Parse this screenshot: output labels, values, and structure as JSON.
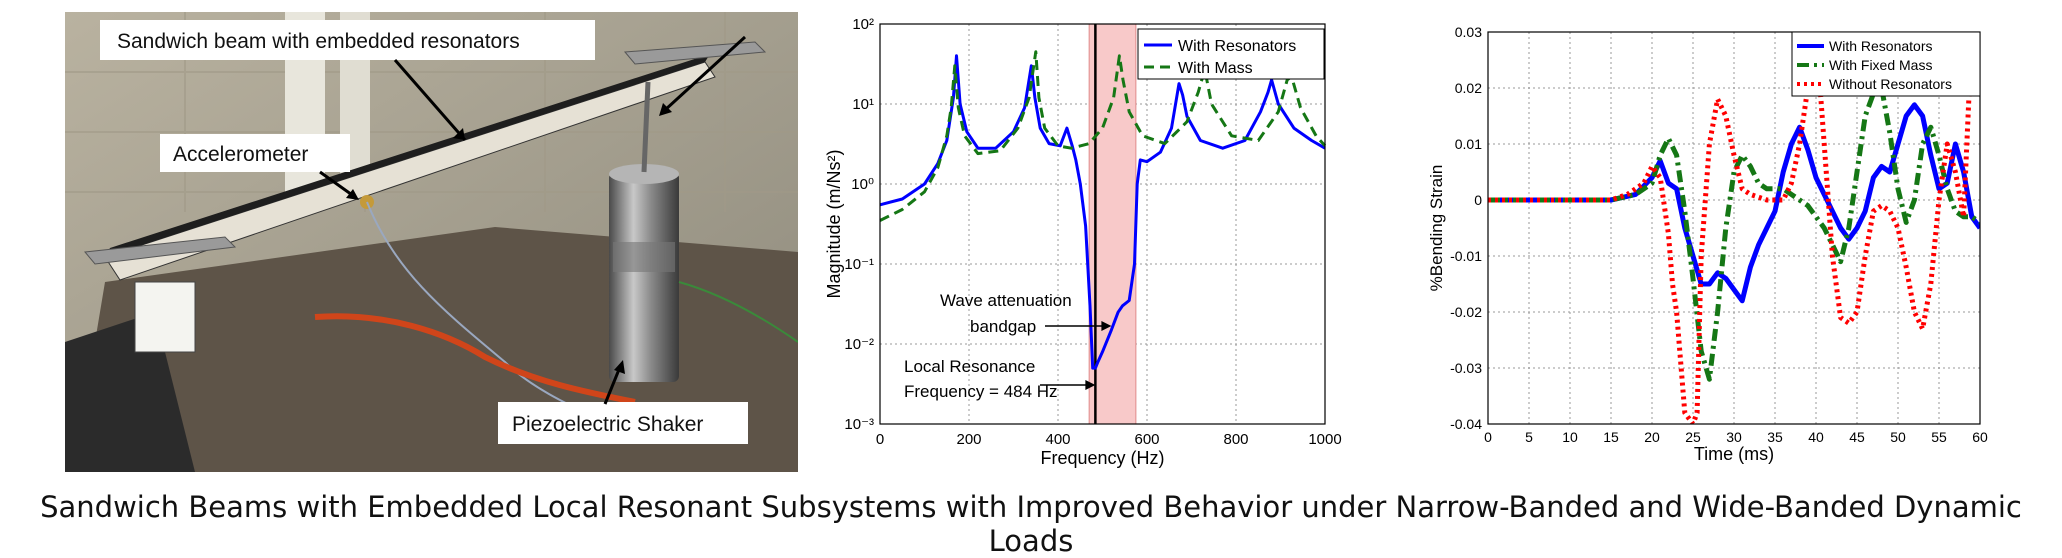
{
  "photo": {
    "labels": {
      "beam": "Sandwich beam with embedded resonators",
      "accelerometer": "Accelerometer",
      "shaker": "Piezoelectric Shaker"
    }
  },
  "caption": "Sandwich Beams with Embedded Local Resonant Subsystems with Improved Behavior under Narrow-Banded and Wide-Banded Dynamic Loads",
  "chart_data": [
    {
      "type": "line",
      "title": "",
      "xlabel": "Frequency (Hz)",
      "ylabel": "Magnitude (m/Ns²)",
      "xlim": [
        0,
        1000
      ],
      "ylim": [
        0.001,
        100
      ],
      "yscale": "log",
      "xticks": [
        "0",
        "200",
        "400",
        "600",
        "800",
        "1000"
      ],
      "yticks": [
        "10⁻³",
        "10⁻²",
        "10⁻¹",
        "10⁰",
        "10¹",
        "10²"
      ],
      "grid": true,
      "legend_position": "top-right",
      "bandgap": [
        470,
        575
      ],
      "resonance_line": 484,
      "annotations": {
        "bandgap_line1": "Wave attenuation",
        "bandgap_line2": "bandgap",
        "resonance_line1": "Local Resonance",
        "resonance_line2": "Frequency = 484 Hz"
      },
      "series": [
        {
          "name": "With Resonators",
          "color": "#0000ff",
          "style": "solid",
          "x": [
            0,
            50,
            100,
            130,
            150,
            165,
            172,
            180,
            195,
            220,
            260,
            300,
            325,
            340,
            348,
            360,
            380,
            405,
            420,
            432,
            440,
            450,
            462,
            472,
            478,
            484,
            490,
            500,
            520,
            535,
            545,
            560,
            572,
            578,
            585,
            600,
            630,
            655,
            672,
            680,
            690,
            720,
            770,
            820,
            855,
            872,
            880,
            895,
            930,
            970,
            1000
          ],
          "y": [
            0.55,
            0.65,
            1.0,
            1.8,
            3.5,
            12,
            40,
            10,
            4.5,
            2.8,
            2.8,
            4.5,
            9,
            30,
            12,
            5,
            3.2,
            3.0,
            5,
            3,
            2,
            1.0,
            0.3,
            0.03,
            0.005,
            0.005,
            0.006,
            0.008,
            0.015,
            0.025,
            0.03,
            0.035,
            0.1,
            1.0,
            2.0,
            1.9,
            2.5,
            5,
            18,
            13,
            7,
            3.5,
            2.8,
            3.5,
            8,
            14,
            20,
            10,
            5,
            3.5,
            2.8
          ]
        },
        {
          "name": "With Mass",
          "color": "#157715",
          "style": "dashed",
          "x": [
            0,
            50,
            100,
            130,
            150,
            160,
            168,
            176,
            190,
            220,
            270,
            310,
            335,
            350,
            357,
            370,
            400,
            430,
            470,
            500,
            525,
            538,
            546,
            560,
            590,
            640,
            690,
            715,
            730,
            745,
            790,
            850,
            895,
            915,
            925,
            945,
            980,
            1000
          ],
          "y": [
            0.35,
            0.48,
            0.8,
            1.6,
            4,
            9,
            30,
            9,
            4,
            2.4,
            2.6,
            5,
            12,
            45,
            12,
            5,
            3,
            2.8,
            3.2,
            5,
            12,
            40,
            20,
            8,
            4,
            3.2,
            6,
            14,
            27,
            10,
            4,
            3.5,
            8,
            20,
            22,
            9,
            4,
            3
          ]
        }
      ]
    },
    {
      "type": "line",
      "title": "",
      "xlabel": "Time (ms)",
      "ylabel": "%Bending Strain",
      "xlim": [
        0,
        60
      ],
      "ylim": [
        -0.04,
        0.03
      ],
      "xticks": [
        "0",
        "5",
        "10",
        "15",
        "20",
        "25",
        "30",
        "35",
        "40",
        "45",
        "50",
        "55",
        "60"
      ],
      "yticks": [
        "-0.04",
        "-0.03",
        "-0.02",
        "-0.01",
        "0",
        "0.01",
        "0.02",
        "0.03"
      ],
      "grid": true,
      "legend_position": "top-right",
      "series": [
        {
          "name": "With Resonators",
          "color": "#0000ff",
          "style": "solid",
          "x": [
            0,
            15,
            18,
            20,
            21,
            22,
            23,
            24,
            25,
            26,
            27,
            28,
            29,
            30,
            31,
            32,
            33,
            34,
            35,
            36,
            37,
            38,
            39,
            40,
            41,
            42,
            43,
            44,
            45,
            46,
            47,
            48,
            49,
            50,
            51,
            52,
            53,
            54,
            55,
            56,
            57,
            58,
            59,
            60
          ],
          "y": [
            0,
            0,
            0.001,
            0.004,
            0.007,
            0.003,
            0.002,
            -0.005,
            -0.01,
            -0.015,
            -0.015,
            -0.013,
            -0.014,
            -0.016,
            -0.018,
            -0.012,
            -0.008,
            -0.005,
            -0.002,
            0.005,
            0.01,
            0.013,
            0.009,
            0.004,
            0.001,
            -0.002,
            -0.005,
            -0.007,
            -0.005,
            -0.002,
            0.004,
            0.006,
            0.005,
            0.01,
            0.015,
            0.017,
            0.015,
            0.008,
            0.002,
            0.003,
            0.01,
            0.005,
            -0.003,
            -0.005
          ]
        },
        {
          "name": "With Fixed Mass",
          "color": "#157715",
          "style": "dashdot",
          "x": [
            0,
            15,
            18,
            20,
            21,
            22,
            23,
            24,
            25,
            26,
            27,
            28,
            29,
            30,
            31,
            32,
            33,
            34,
            35,
            36,
            37,
            38,
            39,
            40,
            41,
            42,
            43,
            44,
            45,
            46,
            47,
            48,
            49,
            50,
            51,
            52,
            53,
            54,
            55,
            56,
            57,
            58,
            59,
            60
          ],
          "y": [
            0,
            0,
            0.001,
            0.003,
            0.008,
            0.011,
            0.008,
            -0.002,
            -0.014,
            -0.027,
            -0.032,
            -0.02,
            -0.005,
            0.005,
            0.008,
            0.006,
            0.003,
            0.002,
            0.002,
            0.002,
            0.001,
            0.0,
            -0.001,
            -0.003,
            -0.005,
            -0.008,
            -0.011,
            -0.005,
            0.005,
            0.015,
            0.019,
            0.02,
            0.012,
            0.002,
            -0.004,
            0.0,
            0.01,
            0.013,
            0.008,
            0.002,
            -0.002,
            -0.003,
            -0.003,
            -0.004
          ]
        },
        {
          "name": "Without Resonators",
          "color": "#ff0000",
          "style": "dotted",
          "x": [
            0,
            15,
            17,
            19,
            20,
            21,
            22,
            22.5,
            23,
            24,
            25,
            25.5,
            26,
            27,
            28,
            29,
            30,
            31,
            32,
            34,
            36,
            37,
            38,
            39,
            40,
            41,
            42,
            43,
            44,
            45,
            46,
            47,
            48,
            49,
            50,
            51,
            52,
            53,
            54,
            55,
            56,
            57,
            58,
            59,
            60
          ],
          "y": [
            0,
            0,
            0.001,
            0.003,
            0.006,
            0.004,
            -0.006,
            -0.015,
            -0.02,
            -0.038,
            -0.04,
            -0.038,
            -0.01,
            0.01,
            0.018,
            0.015,
            0.008,
            0.002,
            0.001,
            0.0,
            0.0,
            0.003,
            0.01,
            0.02,
            0.03,
            0.01,
            -0.01,
            -0.021,
            -0.022,
            -0.02,
            -0.01,
            -0.002,
            -0.001,
            -0.002,
            -0.005,
            -0.012,
            -0.02,
            -0.023,
            -0.015,
            0.0,
            0.01,
            0.005,
            -0.003,
            0.03,
            0.03
          ]
        }
      ]
    }
  ]
}
